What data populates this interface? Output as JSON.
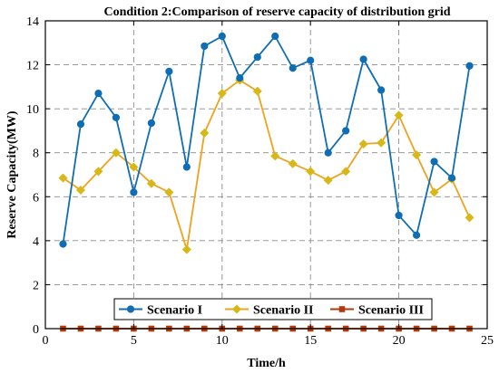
{
  "chart_data": {
    "type": "line",
    "title": "Condition 2:Comparison of reserve capacity of distribution grid",
    "xlabel": "Time/h",
    "ylabel": "Reserve Capacity(MW)",
    "xlim": [
      0,
      25
    ],
    "ylim": [
      0,
      14
    ],
    "xticks": [
      "0",
      "5",
      "10",
      "15",
      "20",
      "25"
    ],
    "yticks": [
      "0",
      "2",
      "4",
      "6",
      "8",
      "10",
      "12",
      "14"
    ],
    "grid": true,
    "legend_position": "bottom-center",
    "x": [
      1,
      2,
      3,
      4,
      5,
      6,
      7,
      8,
      9,
      10,
      11,
      12,
      13,
      14,
      15,
      16,
      17,
      18,
      19,
      20,
      21,
      22,
      23,
      24
    ],
    "series": [
      {
        "name": "Scenario I",
        "color": "#0f6db3",
        "marker": "circle",
        "values": [
          3.85,
          9.3,
          10.7,
          9.6,
          6.2,
          9.35,
          11.7,
          7.35,
          12.85,
          13.3,
          11.4,
          12.35,
          13.3,
          11.85,
          12.2,
          8.0,
          9.0,
          12.25,
          10.85,
          5.15,
          4.25,
          7.6,
          6.85,
          11.95
        ]
      },
      {
        "name": "Scenario II",
        "color": "#f0a21f",
        "marker": "diamond",
        "marker_color": "#d6b818",
        "values": [
          6.85,
          6.3,
          7.15,
          8.0,
          7.35,
          6.6,
          6.2,
          3.6,
          8.9,
          10.7,
          11.3,
          10.8,
          7.85,
          7.5,
          7.15,
          6.75,
          7.15,
          8.4,
          8.45,
          9.7,
          7.9,
          6.2,
          6.8,
          5.05
        ]
      },
      {
        "name": "Scenario III",
        "color": "#b03a0e",
        "marker": "square",
        "values": [
          0,
          0,
          0,
          0,
          0,
          0,
          0,
          0,
          0,
          0,
          0,
          0,
          0,
          0,
          0,
          0,
          0,
          0,
          0,
          0,
          0,
          0,
          0,
          0
        ]
      }
    ]
  }
}
